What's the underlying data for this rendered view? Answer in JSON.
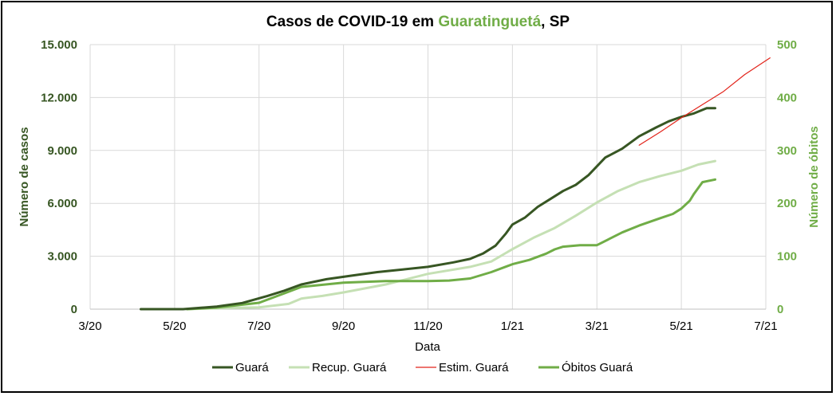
{
  "chart_data": {
    "type": "line",
    "title_prefix": "Casos de COVID-19 em ",
    "title_highlight": "Guaratinguetá",
    "title_suffix": ", SP",
    "xlabel": "Data",
    "ylabel_left": "Número de casos",
    "ylabel_right": "Número de óbitos",
    "x_ticks": [
      "3/20",
      "5/20",
      "7/20",
      "9/20",
      "11/20",
      "1/21",
      "3/21",
      "5/21",
      "7/21"
    ],
    "x_range_months": [
      0,
      16
    ],
    "y_left_ticks": [
      "0",
      "3.000",
      "6.000",
      "9.000",
      "12.000",
      "15.000"
    ],
    "y_left_range": [
      0,
      15000
    ],
    "y_right_ticks": [
      "0",
      "100",
      "200",
      "300",
      "400",
      "500"
    ],
    "y_right_range": [
      0,
      500
    ],
    "grid": true,
    "legend_position": "bottom",
    "colors": {
      "guara": "#375623",
      "recup": "#c5e0b4",
      "estim": "#e2231a",
      "obitos": "#70ad47",
      "title_highlight": "#70ad47",
      "left_axis": "#375623",
      "right_axis": "#70ad47",
      "grid": "#d9d9d9"
    },
    "series": [
      {
        "name": "Guará",
        "axis": "left",
        "x": [
          1.2,
          2.2,
          3.0,
          3.6,
          4.2,
          4.6,
          5.0,
          5.6,
          6.2,
          6.8,
          7.4,
          8.0,
          8.6,
          9.0,
          9.3,
          9.6,
          9.85,
          10.0,
          10.3,
          10.6,
          10.9,
          11.2,
          11.5,
          11.8,
          12.2,
          12.6,
          13.0,
          13.4,
          13.7,
          14.0,
          14.3,
          14.6,
          14.8
        ],
        "values": [
          0,
          0,
          150,
          350,
          750,
          1050,
          1400,
          1700,
          1900,
          2100,
          2250,
          2400,
          2650,
          2850,
          3150,
          3600,
          4300,
          4800,
          5200,
          5800,
          6250,
          6700,
          7050,
          7600,
          8600,
          9100,
          9800,
          10300,
          10650,
          10900,
          11100,
          11400,
          11400
        ]
      },
      {
        "name": "Recup. Guará",
        "axis": "left",
        "x": [
          2.3,
          3.0,
          4.0,
          4.7,
          5.0,
          5.5,
          6.0,
          7.0,
          8.0,
          9.0,
          9.5,
          10.0,
          10.5,
          11.0,
          11.5,
          12.0,
          12.5,
          13.0,
          13.5,
          14.0,
          14.4,
          14.8
        ],
        "values": [
          0,
          50,
          100,
          300,
          600,
          750,
          950,
          1400,
          2000,
          2400,
          2700,
          3400,
          4050,
          4600,
          5300,
          6050,
          6700,
          7200,
          7550,
          7850,
          8200,
          8400
        ]
      },
      {
        "name": "Estim. Guará",
        "axis": "left",
        "x": [
          13.0,
          13.5,
          14.0,
          14.5,
          15.0,
          15.5,
          16.1
        ],
        "values": [
          9300,
          10050,
          10850,
          11600,
          12350,
          13300,
          14250
        ]
      },
      {
        "name": "Óbitos Guará",
        "axis": "right",
        "x": [
          2.3,
          3.0,
          4.0,
          4.6,
          5.0,
          6.0,
          7.0,
          8.0,
          8.5,
          9.0,
          9.5,
          10.0,
          10.4,
          10.8,
          11.0,
          11.2,
          11.6,
          12.0,
          12.3,
          12.6,
          13.0,
          13.5,
          13.8,
          14.0,
          14.2,
          14.3,
          14.5,
          14.8
        ],
        "values": [
          0,
          3,
          12,
          30,
          42,
          50,
          53,
          53,
          54,
          58,
          70,
          85,
          93,
          105,
          113,
          118,
          121,
          121,
          133,
          145,
          158,
          172,
          180,
          190,
          205,
          218,
          240,
          245
        ]
      }
    ]
  }
}
